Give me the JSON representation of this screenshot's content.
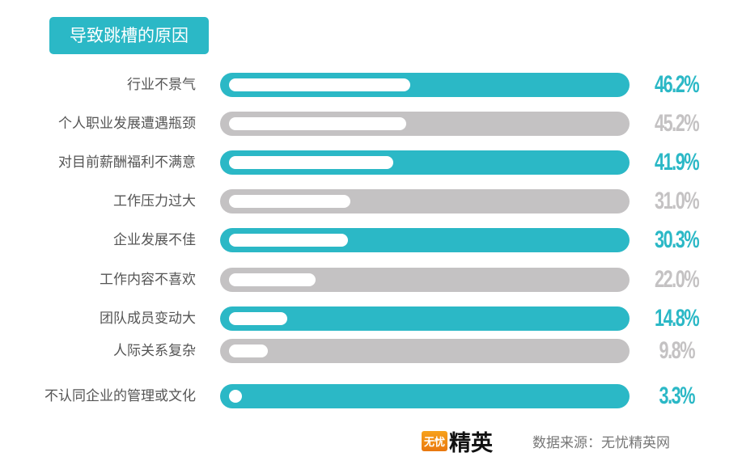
{
  "chart_data": {
    "type": "bar",
    "orientation": "horizontal",
    "title": "导致跳槽的原因",
    "categories": [
      "行业不景气",
      "个人职业发展遭遇瓶颈",
      "对目前薪酬福利不满意",
      "工作压力过大",
      "企业发展不佳",
      "工作内容不喜欢",
      "团队成员变动大",
      "人际关系复杂",
      "不认同企业的管理或文化"
    ],
    "values": [
      46.2,
      45.2,
      41.9,
      31.0,
      30.3,
      22.0,
      14.8,
      9.8,
      3.3
    ],
    "value_labels": [
      "46.2%",
      "45.2%",
      "41.9%",
      "31.0%",
      "30.3%",
      "22.0%",
      "14.8%",
      "9.8%",
      "3.3%"
    ],
    "xlim": [
      0,
      100
    ],
    "grid": false,
    "colors": {
      "teal": "#2bb8c6",
      "gray": "#c4c2c3",
      "fill": "#ffffff"
    }
  },
  "footer": {
    "logo_box": "无忧",
    "logo_text": "精英",
    "source": "数据来源：无忧精英网"
  }
}
